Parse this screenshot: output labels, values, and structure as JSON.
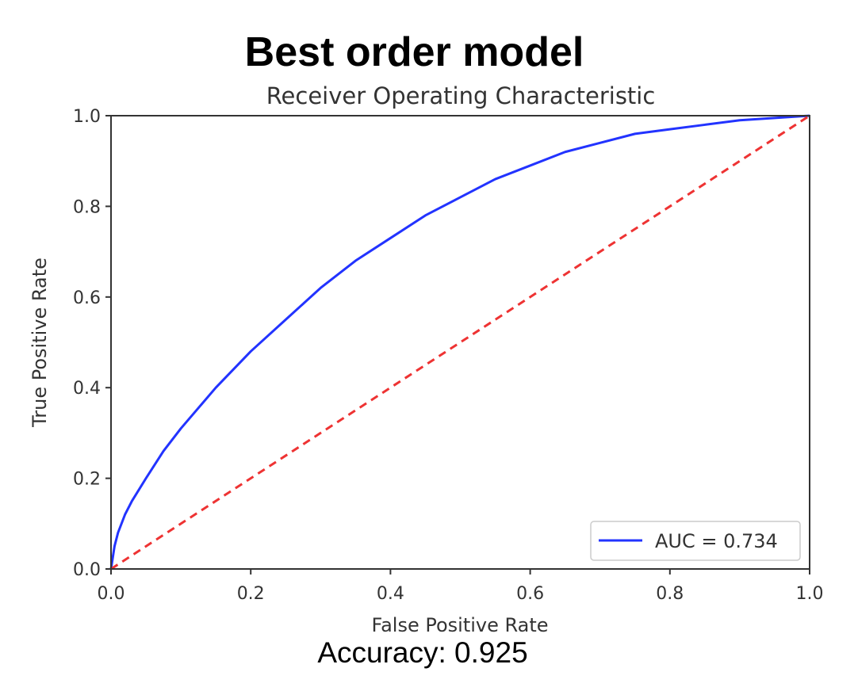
{
  "heading": "Best order model",
  "footer": "Accuracy: 0.925",
  "colors": {
    "roc": "#2233ff",
    "baseline": "#ee3333",
    "axes": "#333333"
  },
  "chart_data": {
    "type": "line",
    "title": "Receiver Operating Characteristic",
    "xlabel": "False Positive Rate",
    "ylabel": "True Positive Rate",
    "xlim": [
      0.0,
      1.0
    ],
    "ylim": [
      0.0,
      1.0
    ],
    "x_ticks": [
      "0.0",
      "0.2",
      "0.4",
      "0.6",
      "0.8",
      "1.0"
    ],
    "y_ticks": [
      "0.0",
      "0.2",
      "0.4",
      "0.6",
      "0.8",
      "1.0"
    ],
    "grid": false,
    "legend_position": "lower-right",
    "series": [
      {
        "name": "AUC = 0.734",
        "style": "solid",
        "x": [
          0.0,
          0.005,
          0.01,
          0.02,
          0.03,
          0.05,
          0.075,
          0.1,
          0.15,
          0.2,
          0.25,
          0.3,
          0.35,
          0.4,
          0.45,
          0.5,
          0.55,
          0.6,
          0.65,
          0.7,
          0.75,
          0.8,
          0.85,
          0.9,
          0.95,
          1.0
        ],
        "y": [
          0.0,
          0.05,
          0.08,
          0.12,
          0.15,
          0.2,
          0.26,
          0.31,
          0.4,
          0.48,
          0.55,
          0.62,
          0.68,
          0.73,
          0.78,
          0.82,
          0.86,
          0.89,
          0.92,
          0.94,
          0.96,
          0.97,
          0.98,
          0.99,
          0.995,
          1.0
        ]
      },
      {
        "style": "dashed",
        "x": [
          0.0,
          1.0
        ],
        "y": [
          0.0,
          1.0
        ]
      }
    ]
  }
}
